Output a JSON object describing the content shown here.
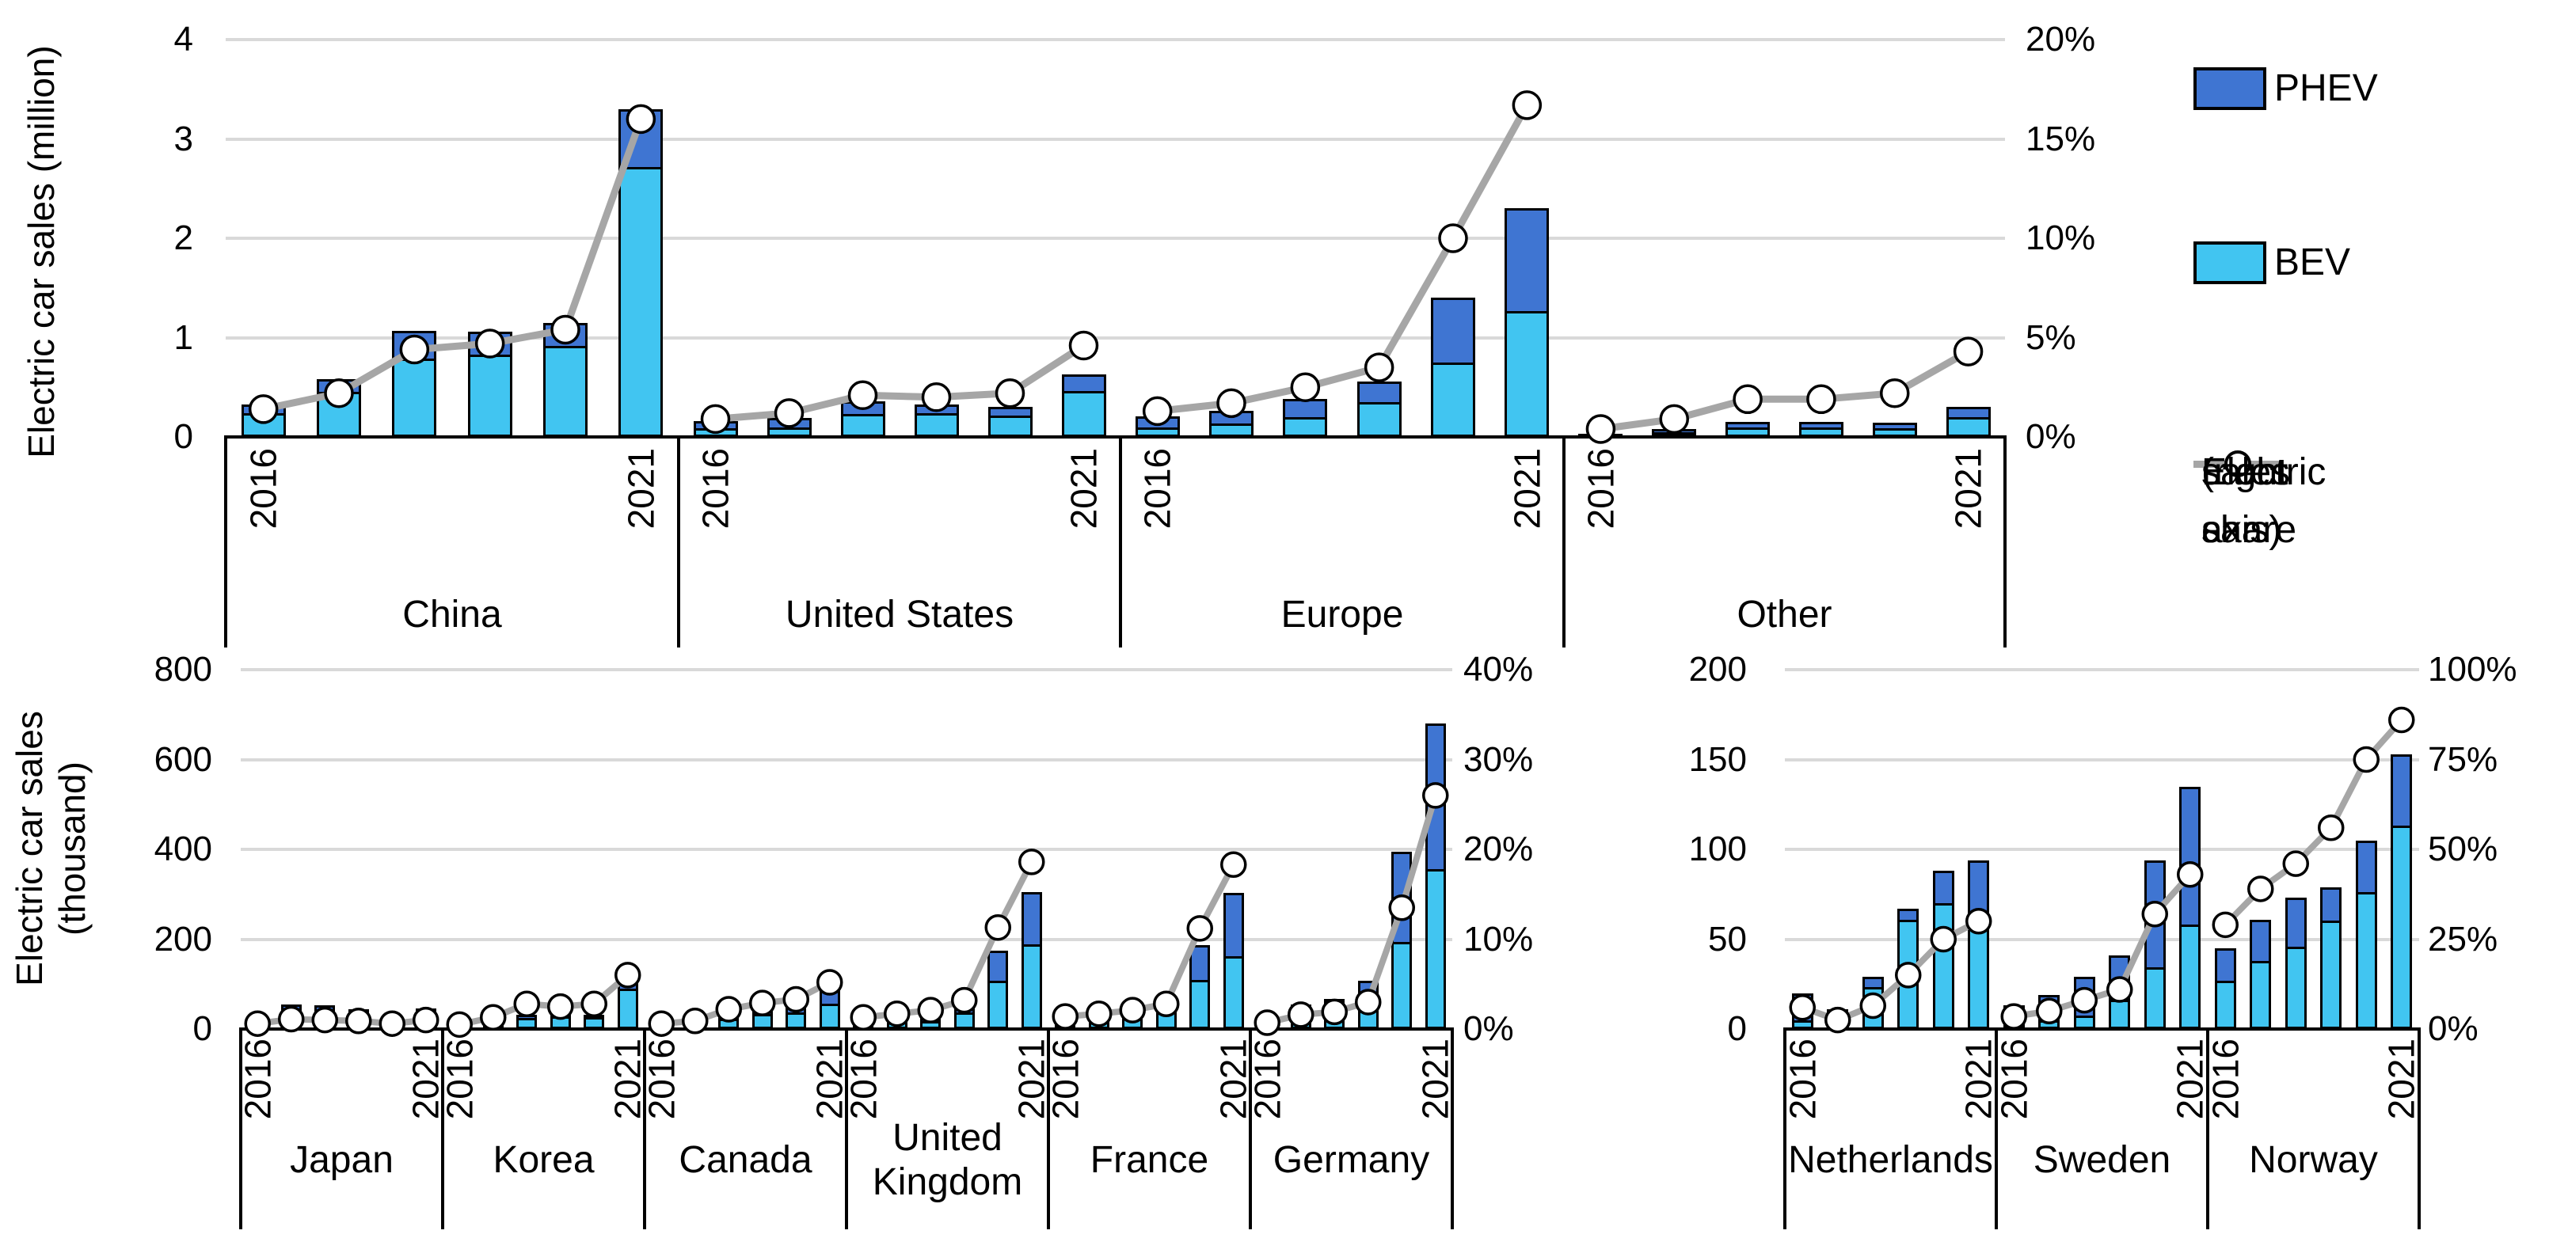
{
  "colors": {
    "bev": "#41C5F1",
    "phev": "#3F75D2",
    "share_line": "#A6A6A6",
    "marker_fill": "#FFFFFF",
    "outline": "#000000",
    "grid": "#D9D9D9",
    "text": "#000000"
  },
  "legend": {
    "phev_label": "PHEV",
    "bev_label": "BEV",
    "share_label": "Electric car sales share (right axis)",
    "share_label_lines": [
      "Electric car",
      "sales share",
      "(right axis)"
    ]
  },
  "chart_data": [
    {
      "id": "top",
      "type": "bar+line",
      "title": "",
      "ylabel": "Electric car sales (million)",
      "ylabel_lines": [
        "Electric car sales (million)"
      ],
      "unit": "million",
      "grid": true,
      "legend_position": "right",
      "x_years": [
        "2016",
        "2017",
        "2018",
        "2019",
        "2020",
        "2021"
      ],
      "year_tick_labels_shown": [
        "2016",
        "2021"
      ],
      "left_axis": {
        "range": [
          0,
          4
        ],
        "tick_labels": [
          "4",
          "3",
          "2",
          "1",
          "0"
        ]
      },
      "right_axis": {
        "range": [
          0,
          20
        ],
        "tick_labels": [
          "20%",
          "15%",
          "10%",
          "5%",
          "0%"
        ]
      },
      "series_names": {
        "bar_bottom": "BEV",
        "bar_top": "PHEV",
        "line": "Electric car sales share (right axis)"
      },
      "groups": [
        {
          "label": "China",
          "bev": [
            0.25,
            0.47,
            0.8,
            0.84,
            0.93,
            2.73
          ],
          "phev": [
            0.08,
            0.11,
            0.27,
            0.22,
            0.22,
            0.57
          ],
          "share_pct": [
            1.4,
            2.2,
            4.4,
            4.7,
            5.4,
            16.0
          ]
        },
        {
          "label": "United States",
          "bev": [
            0.09,
            0.1,
            0.24,
            0.25,
            0.23,
            0.47
          ],
          "phev": [
            0.07,
            0.09,
            0.12,
            0.08,
            0.07,
            0.16
          ],
          "share_pct": [
            0.9,
            1.2,
            2.1,
            2.0,
            2.2,
            4.6
          ]
        },
        {
          "label": "Europe",
          "bev": [
            0.09,
            0.14,
            0.2,
            0.36,
            0.75,
            1.27
          ],
          "phev": [
            0.12,
            0.12,
            0.18,
            0.2,
            0.65,
            1.03
          ],
          "share_pct": [
            1.3,
            1.7,
            2.5,
            3.5,
            10.0,
            16.7
          ]
        },
        {
          "label": "Other",
          "bev": [
            0.02,
            0.05,
            0.1,
            0.1,
            0.1,
            0.21
          ],
          "phev": [
            0.01,
            0.03,
            0.05,
            0.05,
            0.04,
            0.09
          ],
          "share_pct": [
            0.4,
            0.9,
            1.9,
            1.9,
            2.2,
            4.3
          ]
        }
      ]
    },
    {
      "id": "bottom-left",
      "type": "bar+line",
      "title": "",
      "ylabel": "Electric car sales (thousand)",
      "ylabel_lines": [
        "Electric car sales",
        "(thousand)"
      ],
      "unit": "thousand",
      "grid": true,
      "x_years": [
        "2016",
        "2017",
        "2018",
        "2019",
        "2020",
        "2021"
      ],
      "year_tick_labels_shown": [
        "2016",
        "2021"
      ],
      "left_axis": {
        "range": [
          0,
          800
        ],
        "tick_labels": [
          "800",
          "600",
          "400",
          "200",
          "0"
        ]
      },
      "right_axis": {
        "range": [
          0,
          40
        ],
        "tick_labels": [
          "40%",
          "30%",
          "20%",
          "10%",
          "0%"
        ]
      },
      "series_names": {
        "bar_bottom": "BEV",
        "bar_top": "PHEV",
        "line": "Electric car sales share (right axis)"
      },
      "groups": [
        {
          "label": "Japan",
          "bev": [
            15,
            18,
            26,
            21,
            15,
            21
          ],
          "phev": [
            10,
            36,
            26,
            23,
            14,
            24
          ],
          "share_pct": [
            0.6,
            1.1,
            1.0,
            0.9,
            0.6,
            1.0
          ]
        },
        {
          "label": "Korea",
          "bev": [
            5,
            13,
            30,
            33,
            31,
            95
          ],
          "phev": [
            1,
            1,
            2,
            2,
            1,
            8
          ],
          "share_pct": [
            0.5,
            1.3,
            2.8,
            2.5,
            2.8,
            6.0
          ]
        },
        {
          "label": "Canada",
          "bev": [
            6,
            9,
            23,
            35,
            39,
            59
          ],
          "phev": [
            5,
            9,
            21,
            17,
            12,
            27
          ],
          "share_pct": [
            0.6,
            0.9,
            2.2,
            2.9,
            3.3,
            5.2
          ]
        },
        {
          "label": "United Kingdom",
          "label_lines": [
            "United",
            "Kingdom"
          ],
          "bev": [
            10,
            13,
            16,
            38,
            108,
            190
          ],
          "phev": [
            27,
            31,
            42,
            35,
            67,
            115
          ],
          "share_pct": [
            1.3,
            1.7,
            2.1,
            3.2,
            11.3,
            18.6
          ]
        },
        {
          "label": "France",
          "bev": [
            21,
            25,
            31,
            43,
            111,
            162
          ],
          "phev": [
            8,
            12,
            14,
            18,
            75,
            141
          ],
          "share_pct": [
            1.4,
            1.7,
            2.1,
            2.8,
            11.2,
            18.3
          ]
        },
        {
          "label": "Germany",
          "bev": [
            11,
            25,
            36,
            63,
            194,
            356
          ],
          "phev": [
            14,
            30,
            31,
            45,
            200,
            325
          ],
          "share_pct": [
            0.7,
            1.6,
            1.9,
            3.0,
            13.5,
            26.0
          ]
        }
      ]
    },
    {
      "id": "bottom-right",
      "type": "bar+line",
      "title": "",
      "ylabel": "",
      "ylabel_lines": [],
      "unit": "thousand",
      "grid": true,
      "x_years": [
        "2016",
        "2017",
        "2018",
        "2019",
        "2020",
        "2021"
      ],
      "year_tick_labels_shown": [
        "2016",
        "2021"
      ],
      "left_axis": {
        "range": [
          0,
          200
        ],
        "tick_labels": [
          "200",
          "150",
          "100",
          "50",
          "0"
        ]
      },
      "right_axis": {
        "range": [
          0,
          100
        ],
        "tick_labels": [
          "100%",
          "75%",
          "50%",
          "25%",
          "0%"
        ]
      },
      "series_names": {
        "bar_bottom": "BEV",
        "bar_top": "PHEV",
        "line": "Electric car sales share (right axis)"
      },
      "groups": [
        {
          "label": "Netherlands",
          "bev": [
            4,
            10,
            24,
            62,
            71,
            64
          ],
          "phev": [
            16,
            1,
            5,
            5,
            17,
            30
          ],
          "share_pct": [
            6.0,
            2.5,
            6.5,
            15.0,
            25.0,
            30.0
          ]
        },
        {
          "label": "Sweden",
          "bev": [
            3,
            4,
            7,
            16,
            34,
            58
          ],
          "phev": [
            10,
            15,
            22,
            25,
            60,
            77
          ],
          "share_pct": [
            3.5,
            5.0,
            8.0,
            11.0,
            32.0,
            43.0
          ]
        },
        {
          "label": "Norway",
          "bev": [
            27,
            38,
            46,
            61,
            77,
            114
          ],
          "phev": [
            18,
            23,
            27,
            18,
            28,
            39
          ],
          "share_pct": [
            29.0,
            39.0,
            46.0,
            56.0,
            75.0,
            86.0
          ]
        }
      ]
    }
  ]
}
